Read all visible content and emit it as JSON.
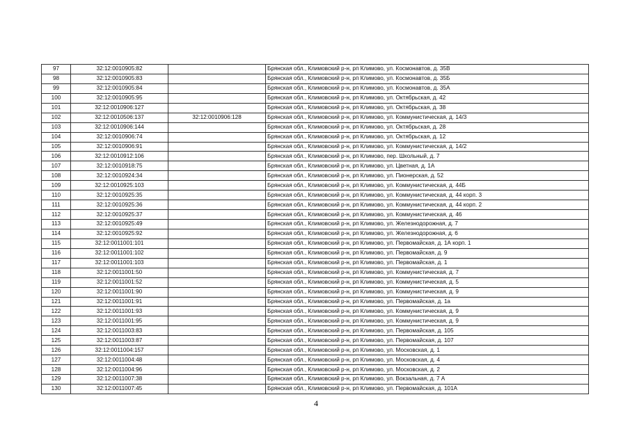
{
  "table": {
    "rows": [
      {
        "n": "97",
        "cad": "32:12:0010905:82",
        "extra": "",
        "address": "Брянская обл., Климовский р-н, рп Климово, ул. Космонавтов, д. 35В"
      },
      {
        "n": "98",
        "cad": "32:12:0010905:83",
        "extra": "",
        "address": "Брянская обл., Климовский р-н, рп Климово, ул. Космонавтов, д. 35Б"
      },
      {
        "n": "99",
        "cad": "32:12:0010905:84",
        "extra": "",
        "address": "Брянская обл., Климовский р-н, рп Климово, ул. Космонавтов, д. 35А"
      },
      {
        "n": "100",
        "cad": "32:12:0010905:95",
        "extra": "",
        "address": "Брянская обл., Климовский р-н, рп Климово, ул. Октябрьская, д. 42"
      },
      {
        "n": "101",
        "cad": "32:12:0010906:127",
        "extra": "",
        "address": "Брянская обл., Климовский р-н, рп Климово, ул. Октябрьская, д. 38"
      },
      {
        "n": "102",
        "cad": "32:12:0010506:137",
        "extra": "32:12:0010906:128",
        "address": "Брянская обл., Климовский р-н, рп Климово, ул. Коммунистическая, д. 14/3"
      },
      {
        "n": "103",
        "cad": "32:12:0010906:144",
        "extra": "",
        "address": "Брянская обл., Климовский р-н, рп Климово, ул. Октябрьская, д. 28"
      },
      {
        "n": "104",
        "cad": "32:12:0010906:74",
        "extra": "",
        "address": "Брянская обл., Климовский р-н, рп Климово, ул. Октябрьская, д. 12"
      },
      {
        "n": "105",
        "cad": "32:12:0010906:91",
        "extra": "",
        "address": "Брянская обл., Климовский р-н, рп Климово, ул. Коммунистическая, д. 14/2"
      },
      {
        "n": "106",
        "cad": "32:12:0010912:106",
        "extra": "",
        "address": "Брянская обл., Климовский р-н, рп Климово, пер. Школьный, д. 7"
      },
      {
        "n": "107",
        "cad": "32:12:0010918:75",
        "extra": "",
        "address": "Брянская обл., Климовский р-н, рп Климово, ул. Цветная, д. 1А"
      },
      {
        "n": "108",
        "cad": "32:12:0010924:34",
        "extra": "",
        "address": "Брянская обл., Климовский р-н, рп Климово, ул. Пионерская, д. 52"
      },
      {
        "n": "109",
        "cad": "32:12:0010925:103",
        "extra": "",
        "address": "Брянская обл., Климовский р-н, рп Климово, ул. Коммунистическая, д. 44Б"
      },
      {
        "n": "110",
        "cad": "32:12:0010925:35",
        "extra": "",
        "address": "Брянская обл., Климовский р-н, рп Климово, ул. Коммунистическая, д. 44 корп. 3"
      },
      {
        "n": "111",
        "cad": "32:12:0010925:36",
        "extra": "",
        "address": "Брянская обл., Климовский р-н, рп Климово, ул. Коммунистическая, д. 44 корп. 2"
      },
      {
        "n": "112",
        "cad": "32:12:0010925:37",
        "extra": "",
        "address": "Брянская обл., Климовский р-н, рп Климово, ул. Коммунистическая, д. 46"
      },
      {
        "n": "113",
        "cad": "32:12:0010925:49",
        "extra": "",
        "address": "Брянская обл., Климовский р-н, рп Климово, ул. Железнодорожная, д. 7"
      },
      {
        "n": "114",
        "cad": "32:12:0010925:92",
        "extra": "",
        "address": "Брянская обл., Климовский р-н, рп Климово, ул. Железнодорожная, д. 6"
      },
      {
        "n": "115",
        "cad": "32:12:0011001:101",
        "extra": "",
        "address": "Брянская обл., Климовский р-н, рп Климово, ул. Первомайская, д. 1А корп. 1"
      },
      {
        "n": "116",
        "cad": "32:12:0011001:102",
        "extra": "",
        "address": "Брянская обл., Климовский р-н, рп Климово, ул. Первомайская, д. 9"
      },
      {
        "n": "117",
        "cad": "32:12:0011001:103",
        "extra": "",
        "address": "Брянская обл., Климовский р-н, рп Климово, ул. Первомайская, д. 1"
      },
      {
        "n": "118",
        "cad": "32:12:0011001:50",
        "extra": "",
        "address": "Брянская обл., Климовский р-н, рп Климово, ул. Коммунистическая, д. 7"
      },
      {
        "n": "119",
        "cad": "32:12:0011001:52",
        "extra": "",
        "address": "Брянская обл., Климовский р-н, рп Климово, ул. Коммунистическая, д. 5"
      },
      {
        "n": "120",
        "cad": "32:12:0011001:90",
        "extra": "",
        "address": "Брянская обл., Климовский р-н, рп Климово, ул. Коммунистическая, д. 9"
      },
      {
        "n": "121",
        "cad": "32:12:0011001:91",
        "extra": "",
        "address": "Брянская обл., Климовский р-н, рп Климово, ул. Первомайская, д. 1а"
      },
      {
        "n": "122",
        "cad": "32:12:0011001:93",
        "extra": "",
        "address": "Брянская обл., Климовский р-н, рп Климово, ул. Коммунистическая, д. 9"
      },
      {
        "n": "123",
        "cad": "32:12:0011001:95",
        "extra": "",
        "address": "Брянская обл., Климовский р-н, рп Климово, ул. Коммунистическая, д. 9"
      },
      {
        "n": "124",
        "cad": "32:12:0011003:83",
        "extra": "",
        "address": "Брянская обл., Климовский р-н, рп Климово, ул. Первомайская, д. 105"
      },
      {
        "n": "125",
        "cad": "32:12:0011003:87",
        "extra": "",
        "address": "Брянская обл., Климовский р-н, рп Климово, ул. Первомайская, д. 107"
      },
      {
        "n": "126",
        "cad": "32:12:0011004:157",
        "extra": "",
        "address": "Брянская обл., Климовский р-н, рп Климово, ул. Московская, д. 1"
      },
      {
        "n": "127",
        "cad": "32:12:0011004:48",
        "extra": "",
        "address": "Брянская обл., Климовский р-н, рп Климово, ул. Московская, д. 4"
      },
      {
        "n": "128",
        "cad": "32:12:0011004:96",
        "extra": "",
        "address": "Брянская обл., Климовский р-н, рп Климово, ул. Московская, д. 2"
      },
      {
        "n": "129",
        "cad": "32:12:0011007:38",
        "extra": "",
        "address": "Брянская обл., Климовский р-н, рп Климово, ул. Вокзальная, д. 7 А"
      },
      {
        "n": "130",
        "cad": "32:12:0011007:45",
        "extra": "",
        "address": "Брянская обл., Климовский р-н, рп Климово, ул. Первомайская, д. 101А"
      }
    ]
  },
  "page_number": "4"
}
